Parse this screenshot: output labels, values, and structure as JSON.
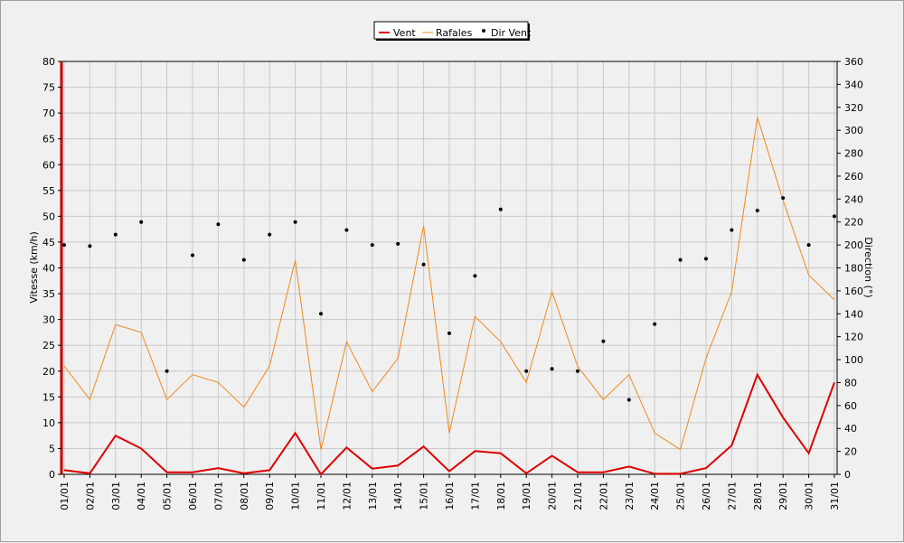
{
  "chart_data": {
    "type": "line",
    "legend": {
      "placement": "top-center",
      "entries": [
        "Vent",
        "Rafales",
        "Dir Vent"
      ]
    },
    "grid": true,
    "xlabel": "",
    "ylabel_left": "Vitesse (km/h)",
    "ylabel_right": "Direction (°)",
    "ylim_left": [
      0,
      80
    ],
    "ylim_right": [
      0,
      360
    ],
    "yticks_left": [
      0,
      5,
      10,
      15,
      20,
      25,
      30,
      35,
      40,
      45,
      50,
      55,
      60,
      65,
      70,
      75,
      80
    ],
    "yticks_right": [
      0,
      20,
      40,
      60,
      80,
      100,
      120,
      140,
      160,
      180,
      200,
      220,
      240,
      260,
      280,
      300,
      320,
      340,
      360
    ],
    "categories": [
      "01/01",
      "02/01",
      "03/01",
      "04/01",
      "05/01",
      "06/01",
      "07/01",
      "08/01",
      "09/01",
      "10/01",
      "11/01",
      "12/01",
      "13/01",
      "14/01",
      "15/01",
      "16/01",
      "17/01",
      "18/01",
      "19/01",
      "20/01",
      "21/01",
      "22/01",
      "23/01",
      "24/01",
      "25/01",
      "26/01",
      "27/01",
      "28/01",
      "29/01",
      "30/01",
      "31/01"
    ],
    "series": [
      {
        "name": "Vent",
        "kind": "line",
        "axis": "left",
        "color": "#dd0000",
        "values": [
          0.8,
          0.2,
          7.5,
          5.0,
          0.4,
          0.4,
          1.2,
          0.2,
          0.8,
          8.0,
          0.0,
          5.2,
          1.1,
          1.7,
          5.4,
          0.6,
          4.5,
          4.1,
          0.2,
          3.6,
          0.4,
          0.4,
          1.5,
          0.1,
          0.1,
          1.2,
          5.6,
          19.3,
          11.0,
          4.1,
          17.8
        ]
      },
      {
        "name": "Rafales",
        "kind": "line",
        "axis": "left",
        "color": "#f08a1c",
        "values": [
          21.0,
          14.5,
          29.0,
          27.5,
          14.5,
          19.3,
          17.8,
          13.0,
          21.0,
          41.5,
          4.8,
          25.7,
          16.0,
          22.5,
          48.2,
          8.0,
          30.6,
          25.7,
          17.8,
          35.4,
          20.9,
          14.5,
          19.3,
          8.0,
          4.8,
          22.5,
          35.4,
          69.2,
          53.1,
          38.6,
          33.8
        ]
      },
      {
        "name": "Dir Vent",
        "kind": "scatter",
        "axis": "right",
        "color": "#000000",
        "values": [
          200,
          199,
          209,
          220,
          90,
          191,
          218,
          187,
          209,
          220,
          140,
          213,
          200,
          201,
          183,
          123,
          173,
          231,
          90,
          92,
          90,
          116,
          65,
          131,
          187,
          188,
          213,
          230,
          241,
          200,
          225
        ]
      }
    ]
  }
}
